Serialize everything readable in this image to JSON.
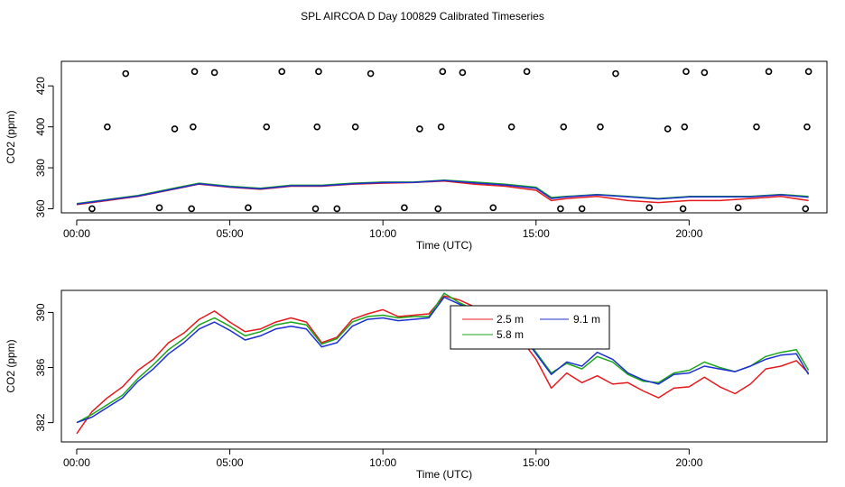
{
  "title": "SPL AIRCOA D  Day 100829  Calibrated Timeseries",
  "colors": {
    "2.5 m": "#e41a1c",
    "5.8 m": "#1aa51a",
    "9.1 m": "#1c2fd0",
    "text": "#000000"
  },
  "chart_data": [
    {
      "type": "line",
      "xlabel": "Time (UTC)",
      "ylabel": "CO2 (ppm)",
      "xlim": [
        -0.5,
        24.5
      ],
      "ylim": [
        358,
        432
      ],
      "x_ticks": [
        0,
        5,
        10,
        15,
        20
      ],
      "x_tick_labels": [
        "00:00",
        "05:00",
        "10:00",
        "15:00",
        "20:00"
      ],
      "y_ticks": [
        360,
        380,
        400,
        420
      ],
      "y_tick_labels": [
        "360",
        "380",
        "400",
        "420"
      ],
      "series": [
        {
          "name": "2.5 m",
          "x": [
            0,
            1,
            2,
            3,
            4,
            5,
            6,
            7,
            8,
            9,
            10,
            11,
            12,
            13,
            14,
            15,
            15.5,
            16,
            17,
            18,
            19,
            20,
            21,
            22,
            23,
            23.9
          ],
          "y": [
            362,
            364,
            366,
            369,
            372,
            370.5,
            369.5,
            371,
            371,
            372,
            372.5,
            372.8,
            373.5,
            372,
            371,
            369,
            364,
            365,
            366,
            364,
            363,
            364,
            364,
            365,
            366,
            364
          ]
        },
        {
          "name": "5.8 m",
          "x": [
            0,
            1,
            2,
            3,
            4,
            5,
            6,
            7,
            8,
            9,
            10,
            11,
            12,
            13,
            14,
            15,
            15.5,
            16,
            17,
            18,
            19,
            20,
            21,
            22,
            23,
            23.9
          ],
          "y": [
            362.5,
            364.5,
            366.5,
            369.5,
            372.5,
            371,
            370,
            371.5,
            371.5,
            372.5,
            373,
            373,
            374,
            373,
            372,
            370.5,
            365.5,
            366,
            367,
            366,
            365,
            366,
            366,
            366,
            367,
            366
          ]
        },
        {
          "name": "9.1 m",
          "x": [
            0,
            1,
            2,
            3,
            4,
            5,
            6,
            7,
            8,
            9,
            10,
            11,
            12,
            13,
            14,
            15,
            15.5,
            16,
            17,
            18,
            19,
            20,
            21,
            22,
            23,
            23.9
          ],
          "y": [
            362.3,
            364.3,
            366.2,
            369.2,
            372.2,
            370.7,
            369.7,
            371.2,
            371.2,
            372.2,
            372.8,
            372.9,
            373.8,
            372.6,
            371.6,
            370,
            365,
            365.8,
            366.8,
            365.8,
            364.8,
            365.8,
            365.8,
            365.8,
            366.8,
            365.6
          ]
        }
      ],
      "points": {
        "x": [
          0.5,
          1,
          1.6,
          2.7,
          3.2,
          3.75,
          3.8,
          3.85,
          4.5,
          5.6,
          6.2,
          6.7,
          7.8,
          7.85,
          7.9,
          8.5,
          9.1,
          9.6,
          10.7,
          11.2,
          11.8,
          11.9,
          11.95,
          12.6,
          13.6,
          14.2,
          14.7,
          15.8,
          15.9,
          16.5,
          17.1,
          17.6,
          18.7,
          19.3,
          19.8,
          19.85,
          19.9,
          20.5,
          21.6,
          22.2,
          22.6,
          23.8,
          23.85,
          23.9
        ],
        "y": [
          360,
          400,
          426,
          360.5,
          399,
          360,
          400,
          427,
          426.5,
          360.5,
          400,
          427,
          360,
          400,
          427,
          360,
          400,
          426,
          360.5,
          399,
          360,
          400,
          427,
          426.5,
          360.5,
          400,
          427,
          360,
          400,
          360,
          400,
          426,
          360.5,
          399,
          360,
          400,
          427,
          426.5,
          360.5,
          400,
          427,
          360,
          400,
          427
        ]
      }
    },
    {
      "type": "line",
      "xlabel": "Time (UTC)",
      "ylabel": "CO2 (ppm)",
      "xlim": [
        -0.5,
        24.5
      ],
      "ylim": [
        380.6,
        391.6
      ],
      "x_ticks": [
        0,
        5,
        10,
        15,
        20
      ],
      "x_tick_labels": [
        "00:00",
        "05:00",
        "10:00",
        "15:00",
        "20:00"
      ],
      "y_ticks": [
        382,
        386,
        390
      ],
      "y_tick_labels": [
        "382",
        "386",
        "390"
      ],
      "legend": {
        "position": "top-center",
        "entries": [
          "2.5 m",
          "9.1 m",
          "5.8 m"
        ]
      },
      "series": [
        {
          "name": "2.5 m",
          "x": [
            0,
            0.5,
            1,
            1.5,
            2,
            2.5,
            3,
            3.5,
            4,
            4.5,
            5,
            5.5,
            6,
            6.5,
            7,
            7.5,
            8,
            8.5,
            9,
            9.5,
            10,
            10.5,
            11,
            11.5,
            12,
            12.5,
            13,
            13.5,
            14,
            14.5,
            15,
            15.5,
            16,
            16.5,
            17,
            17.5,
            18,
            18.5,
            19,
            19.5,
            20,
            20.5,
            21,
            21.5,
            22,
            22.5,
            23,
            23.5,
            23.9
          ],
          "y": [
            381.2,
            382.8,
            383.8,
            384.6,
            385.8,
            386.6,
            387.8,
            388.5,
            389.5,
            390.1,
            389.3,
            388.6,
            388.8,
            389.3,
            389.6,
            389.3,
            387.8,
            388.2,
            389.5,
            389.9,
            390.2,
            389.7,
            389.8,
            389.9,
            391.2,
            390.9,
            390.4,
            389.2,
            388.6,
            388.1,
            386.6,
            384.5,
            385.6,
            384.9,
            385.4,
            384.8,
            384.9,
            384.3,
            383.8,
            384.5,
            384.6,
            385.3,
            384.6,
            384.1,
            384.8,
            385.9,
            386.1,
            386.5,
            385.6
          ]
        },
        {
          "name": "5.8 m",
          "x": [
            0,
            0.5,
            1,
            1.5,
            2,
            2.5,
            3,
            3.5,
            4,
            4.5,
            5,
            5.5,
            6,
            6.5,
            7,
            7.5,
            8,
            8.5,
            9,
            9.5,
            10,
            10.5,
            11,
            11.5,
            12,
            12.5,
            13,
            13.5,
            14,
            14.5,
            15,
            15.5,
            16,
            16.5,
            17,
            17.5,
            18,
            18.5,
            19,
            19.5,
            20,
            20.5,
            21,
            21.5,
            22,
            22.5,
            23,
            23.5,
            23.9
          ],
          "y": [
            382,
            382.6,
            383.3,
            384,
            385.2,
            386.2,
            387.3,
            388.1,
            389.1,
            389.6,
            389,
            388.3,
            388.6,
            389.1,
            389.3,
            389.1,
            387.7,
            388.1,
            389.3,
            389.7,
            389.8,
            389.6,
            389.7,
            389.7,
            391.4,
            390.7,
            390.2,
            389.5,
            389.1,
            388.6,
            387.1,
            385.6,
            386.3,
            385.9,
            386.8,
            386.4,
            385.5,
            385,
            384.9,
            385.6,
            385.8,
            386.4,
            386,
            385.7,
            386.1,
            386.8,
            387.1,
            387.3,
            385.8
          ]
        },
        {
          "name": "9.1 m",
          "x": [
            0,
            0.5,
            1,
            1.5,
            2,
            2.5,
            3,
            3.5,
            4,
            4.5,
            5,
            5.5,
            6,
            6.5,
            7,
            7.5,
            8,
            8.5,
            9,
            9.5,
            10,
            10.5,
            11,
            11.5,
            12,
            12.5,
            13,
            13.5,
            14,
            14.5,
            15,
            15.5,
            16,
            16.5,
            17,
            17.5,
            18,
            18.5,
            19,
            19.5,
            20,
            20.5,
            21,
            21.5,
            22,
            22.5,
            23,
            23.5,
            23.9
          ],
          "y": [
            382,
            382.4,
            383.1,
            383.8,
            385,
            385.9,
            387,
            387.8,
            388.8,
            389.3,
            388.7,
            388,
            388.3,
            388.8,
            389,
            388.8,
            387.5,
            387.8,
            389,
            389.5,
            389.6,
            389.4,
            389.5,
            389.6,
            391.1,
            390.6,
            390.1,
            389.4,
            389,
            388.5,
            387,
            385.5,
            386.4,
            386.1,
            387.1,
            386.6,
            385.6,
            385.1,
            384.8,
            385.5,
            385.6,
            386.1,
            385.9,
            385.7,
            386.1,
            386.6,
            386.9,
            387,
            385.5
          ]
        }
      ]
    }
  ]
}
